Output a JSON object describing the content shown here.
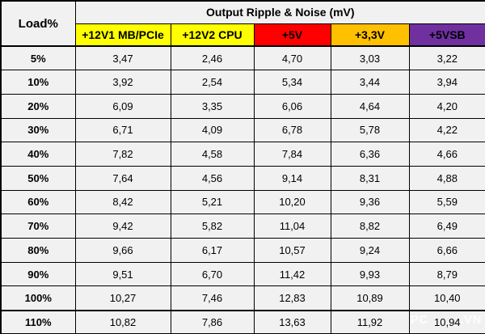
{
  "title": "Output Ripple & Noise (mV)",
  "corner_label": "Load%",
  "header_colors": [
    "#FFFF00",
    "#FFFF00",
    "#FF0000",
    "#FFC000",
    "#7030A0"
  ],
  "watermark": {
    "prefix": "PC",
    "suffix": ".VN"
  },
  "chart_data": {
    "type": "table",
    "title": "Output Ripple & Noise (mV)",
    "row_header": "Load%",
    "unit": "mV",
    "decimal_separator": ",",
    "categories": [
      "5%",
      "10%",
      "20%",
      "30%",
      "40%",
      "50%",
      "60%",
      "70%",
      "80%",
      "90%",
      "100%",
      "110%"
    ],
    "series": [
      {
        "name": "+12V1 MB/PCIe",
        "values": [
          3.47,
          3.92,
          6.09,
          6.71,
          7.82,
          7.64,
          8.42,
          9.42,
          9.66,
          9.51,
          10.27,
          10.82
        ]
      },
      {
        "name": "+12V2 CPU",
        "values": [
          2.46,
          2.54,
          3.35,
          4.09,
          4.58,
          4.56,
          5.21,
          5.82,
          6.17,
          6.7,
          7.46,
          7.86
        ]
      },
      {
        "name": "+5V",
        "values": [
          4.7,
          5.34,
          6.06,
          6.78,
          7.84,
          9.14,
          10.2,
          11.04,
          10.57,
          11.42,
          12.83,
          13.63
        ]
      },
      {
        "name": "+3,3V",
        "values": [
          3.03,
          3.44,
          4.64,
          5.78,
          6.36,
          8.31,
          9.36,
          8.82,
          9.24,
          9.93,
          10.89,
          11.92
        ]
      },
      {
        "name": "+5VSB",
        "values": [
          3.22,
          3.94,
          4.2,
          4.22,
          4.66,
          4.88,
          5.59,
          6.49,
          6.66,
          8.79,
          10.4,
          10.94
        ]
      }
    ]
  }
}
